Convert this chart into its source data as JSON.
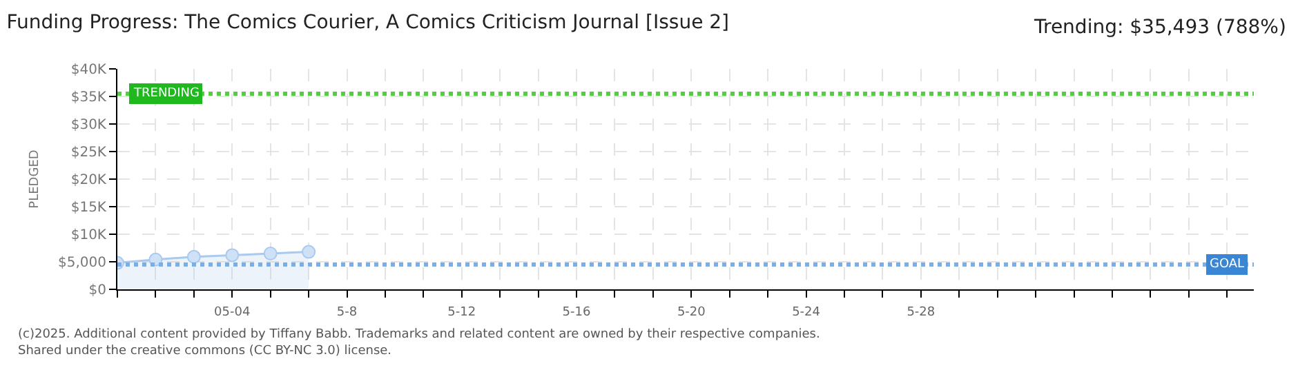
{
  "chart_data": {
    "type": "area",
    "title": "Funding Progress: The Comics Courier, A Comics Criticism Journal [Issue 2]",
    "subtitle": "Trending: $35,493 (788%)",
    "ylabel": "PLEDGED",
    "categories": [
      null,
      null,
      null,
      "05-04",
      null,
      null,
      "5-8",
      null,
      null,
      "5-12",
      null,
      null,
      "5-16",
      null,
      null,
      "5-20",
      null,
      null,
      "5-24",
      null,
      null,
      "5-28",
      null,
      null,
      null,
      null,
      null,
      null,
      null,
      null
    ],
    "series": [
      {
        "color": "#a9c9ee",
        "values": [
          4800,
          5400,
          5900,
          6200,
          6500,
          6800,
          null,
          null,
          null,
          null,
          null,
          null,
          null,
          null,
          null,
          null,
          null,
          null,
          null,
          null,
          null,
          null,
          null,
          null,
          null,
          null,
          null,
          null,
          null,
          null
        ]
      }
    ],
    "ylim": [
      0,
      40000
    ],
    "yticks": [
      {
        "value": 0,
        "label": "$0"
      },
      {
        "value": 5000,
        "label": "$5,000"
      },
      {
        "value": 10000,
        "label": "$10K"
      },
      {
        "value": 15000,
        "label": "$15K"
      },
      {
        "value": 20000,
        "label": "$20K"
      },
      {
        "value": 25000,
        "label": "$25K"
      },
      {
        "value": 30000,
        "label": "$30K"
      },
      {
        "value": 35000,
        "label": "$35K"
      },
      {
        "value": 40000,
        "label": "$40K"
      }
    ],
    "ref_lines": [
      {
        "axis": "y",
        "value": 35493,
        "label": "TRENDING",
        "color": "#55cc44",
        "line_style": "dotted"
      },
      {
        "axis": "y",
        "value": 4500,
        "label": "GOAL",
        "color": "#7aaee6",
        "line_style": "dotted"
      }
    ],
    "annotations": [
      "(c)2025. Additional content provided by Tiffany Babb. Trademarks and related content are owned by their respective companies.",
      "Shared under the creative commons (CC BY-NC 3.0) license."
    ],
    "grid": true,
    "marker": "circle",
    "line_style": "solid"
  }
}
